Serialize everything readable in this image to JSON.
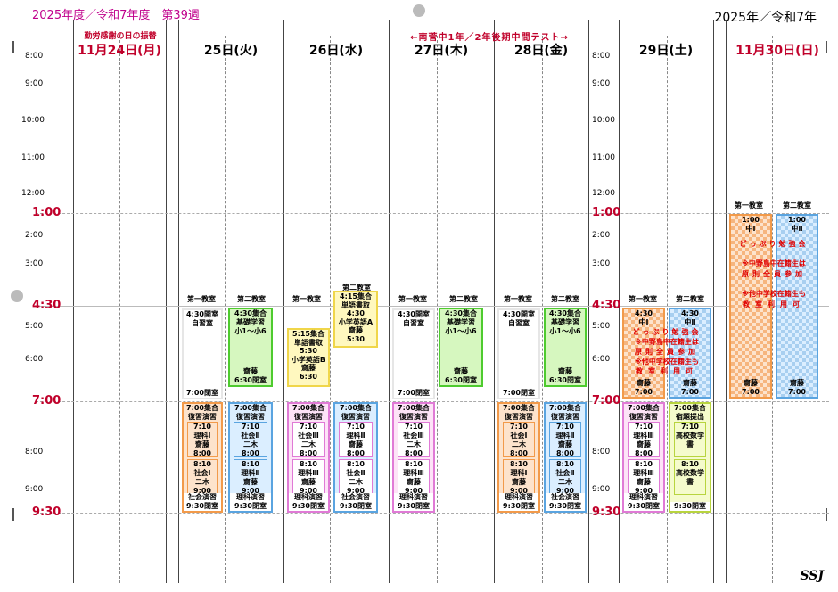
{
  "title_left": "2025年度／令和7年度　第39週",
  "title_right": "2025年／令和7年",
  "signature": "SSJ",
  "banner": "←南菅中1年／2年後期中間テスト→",
  "holiday_note": "勤労感謝の日の振替",
  "days": {
    "mon": "11月24日(月)",
    "tue": "25日(火)",
    "wed": "26日(水)",
    "thu": "27日(木)",
    "fri": "28日(金)",
    "sat": "29日(土)",
    "sun": "11月30日(日)"
  },
  "times": {
    "t8": "8:00",
    "t9": "9:00",
    "t10": "10:00",
    "t11": "11:00",
    "t12": "12:00",
    "t1": "1:00",
    "t2": "2:00",
    "t3": "3:00",
    "t430": "4:30",
    "t5": "5:00",
    "t6": "6:00",
    "t7": "7:00",
    "t8pm": "8:00",
    "t9pm": "9:00",
    "t930": "9:30"
  },
  "rooms": {
    "r1": "第一教室",
    "r2": "第二教室"
  },
  "tue": {
    "room1_top": [
      "4:30開室",
      "自習室"
    ],
    "room1_bottom": "7:00閉室",
    "room2": [
      "4:30集合",
      "基礎学習",
      "小1～小6"
    ],
    "room2_bottom": [
      "齋藤",
      "6:30閉室"
    ],
    "eve1_head": [
      "7:00集合",
      "復習演習"
    ],
    "eve1_a": [
      "7:10",
      "理科Ⅰ",
      "齋藤",
      "8:00"
    ],
    "eve1_b": [
      "8:10",
      "社会Ⅰ",
      "二木",
      "9:00"
    ],
    "eve1_foot": [
      "社会演習",
      "9:30閉室"
    ],
    "eve2_head": [
      "7:00集合",
      "復習演習"
    ],
    "eve2_a": [
      "7:10",
      "社会Ⅱ",
      "二木",
      "8:00"
    ],
    "eve2_b": [
      "8:10",
      "理科Ⅱ",
      "齋藤",
      "9:00"
    ],
    "eve2_foot": [
      "理科演習",
      "9:30閉室"
    ]
  },
  "wed": {
    "room1": [
      "5:15集合",
      "単語書取",
      "5:30",
      "小学英語B",
      "齋藤",
      "6:30"
    ],
    "room2": [
      "4:15集合",
      "単語書取",
      "4:30",
      "小学英語A",
      "齋藤",
      "5:30"
    ],
    "eve1_head": [
      "7:00集合",
      "復習演習"
    ],
    "eve1_a": [
      "7:10",
      "社会Ⅲ",
      "二木",
      "8:00"
    ],
    "eve1_b": [
      "8:10",
      "理科Ⅲ",
      "齋藤",
      "9:00"
    ],
    "eve1_foot": [
      "理科演習",
      "9:30閉室"
    ],
    "eve2_head": [
      "7:00集合",
      "復習演習"
    ],
    "eve2_a": [
      "7:10",
      "理科Ⅱ",
      "齋藤",
      "8:00"
    ],
    "eve2_b": [
      "8:10",
      "社会Ⅱ",
      "二木",
      "9:00"
    ],
    "eve2_foot": [
      "社会演習",
      "9:30閉室"
    ]
  },
  "thu": {
    "room1_top": [
      "4:30開室",
      "自習室"
    ],
    "room1_bottom": "7:00閉室",
    "room2": [
      "4:30集合",
      "基礎学習",
      "小1～小6"
    ],
    "room2_bottom": [
      "齋藤",
      "6:30閉室"
    ],
    "eve1_head": [
      "7:00集合",
      "復習演習"
    ],
    "eve1_a": [
      "7:10",
      "社会Ⅲ",
      "二木",
      "8:00"
    ],
    "eve1_b": [
      "8:10",
      "理科Ⅲ",
      "齋藤",
      "9:00"
    ],
    "eve1_foot": [
      "理科演習",
      "9:30閉室"
    ]
  },
  "fri": {
    "room1_top": [
      "4:30開室",
      "自習室"
    ],
    "room1_bottom": "7:00閉室",
    "room2": [
      "4:30集合",
      "基礎学習",
      "小1～小6"
    ],
    "room2_bottom": [
      "齋藤",
      "6:30閉室"
    ],
    "eve1_head": [
      "7:00集合",
      "復習演習"
    ],
    "eve1_a": [
      "7:10",
      "社会Ⅰ",
      "二木",
      "8:00"
    ],
    "eve1_b": [
      "8:10",
      "理科Ⅰ",
      "齋藤",
      "9:00"
    ],
    "eve1_foot": [
      "理科演習",
      "9:30閉室"
    ],
    "eve2_head": [
      "7:00集合",
      "復習演習"
    ],
    "eve2_a": [
      "7:10",
      "理科Ⅱ",
      "齋藤",
      "8:00"
    ],
    "eve2_b": [
      "8:10",
      "社会Ⅱ",
      "二木",
      "9:00"
    ],
    "eve2_foot": [
      "社会演習",
      "9:30閉室"
    ]
  },
  "sat": {
    "room1_top": [
      "4:30",
      "中Ⅰ"
    ],
    "room2_top": [
      "4:30",
      "中Ⅱ"
    ],
    "notice": [
      "どっぷり勉強会",
      "※中野島中在籍生は",
      "原則全員参加",
      "※他中学校在籍生も",
      "教室利用可"
    ],
    "room1_bottom": [
      "齋藤",
      "7:00"
    ],
    "room2_bottom": [
      "齋藤",
      "7:00"
    ],
    "eve1_head": [
      "7:00集合",
      "復習演習"
    ],
    "eve1_a": [
      "7:10",
      "理科Ⅲ",
      "齋藤",
      "8:00"
    ],
    "eve1_b": [
      "8:10",
      "理科Ⅲ",
      "齋藤",
      "9:00"
    ],
    "eve1_foot": [
      "理科演習",
      "9:30閉室"
    ],
    "eve2_head": [
      "7:00集合",
      "宿題提出"
    ],
    "eve2_a": [
      "7:10",
      "高校数学",
      "書"
    ],
    "eve2_b": [
      "8:10",
      "高校数学",
      "書"
    ],
    "eve2_foot": [
      "9:30閉室"
    ]
  },
  "sun": {
    "room1_top": [
      "1:00",
      "中Ⅰ"
    ],
    "room2_top": [
      "1:00",
      "中Ⅱ"
    ],
    "notice": [
      "どっぷり勉強会",
      "※中野島中在籍生は",
      "原則全員参加",
      "※他中学校在籍生も",
      "教室利用可"
    ],
    "room1_bottom": [
      "齋藤",
      "7:00"
    ],
    "room2_bottom": [
      "齋藤",
      "7:00"
    ]
  },
  "colors": {
    "red": "#c0002a",
    "magenta": "#c0008c",
    "green": "#4ecb2f",
    "orange": "#f29a4a",
    "blue": "#5aa4e0",
    "pink": "#e07ad6",
    "yellow": "#f0d64a"
  }
}
